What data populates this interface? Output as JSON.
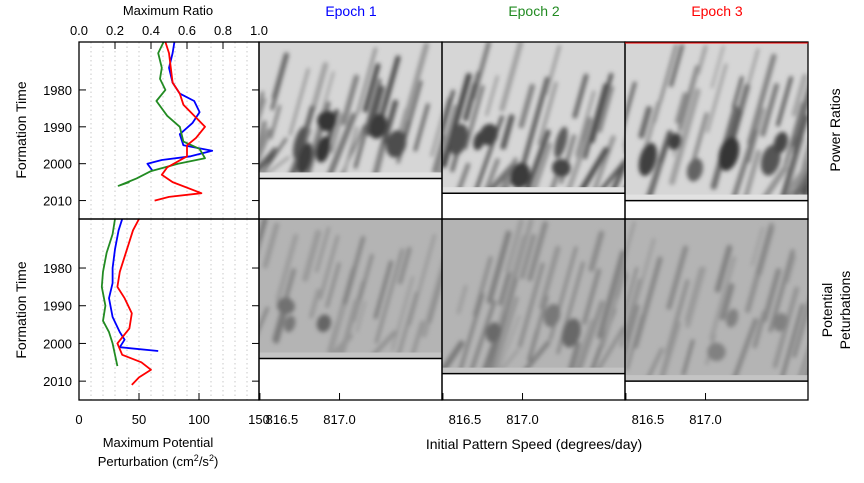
{
  "figure": {
    "top_axis_title": "Maximum Ratio",
    "bottom_left_title_line1": "Maximum Potential",
    "bottom_left_title_line2": "Perturbation (cm",
    "bottom_left_title_sup": "2",
    "bottom_left_title_mid": "/s",
    "bottom_left_title_sup2": "2",
    "bottom_left_title_end": ")",
    "left_ylabel": "Formation Time",
    "bottom_xlabel": "Initial Pattern Speed (degrees/day)",
    "row_label_top": "Power Ratios",
    "row_label_bottom_line1": "Potential",
    "row_label_bottom_line2": "Peturbations",
    "epochs": [
      {
        "label": "Epoch 1",
        "color": "#0000ff"
      },
      {
        "label": "Epoch 2",
        "color": "#228b22"
      },
      {
        "label": "Epoch 3",
        "color": "#ff0000"
      }
    ],
    "colors": {
      "epoch1": "#0000ff",
      "epoch2": "#228b22",
      "epoch3": "#ff0000"
    }
  },
  "chart_data": [
    {
      "type": "line",
      "panel": "top-left",
      "xlabel": "Maximum Ratio",
      "ylabel": "Formation Time",
      "xlim": [
        0.0,
        1.0
      ],
      "ylim": [
        1967,
        2015
      ],
      "x_ticks": [
        "0.0",
        "0.2",
        "0.4",
        "0.6",
        "0.8",
        "1.0"
      ],
      "y_ticks": [
        "1980",
        "1990",
        "2000",
        "2010"
      ],
      "grid": "vertical dotted",
      "series": [
        {
          "name": "Epoch 1",
          "color": "#0000ff",
          "points": [
            [
              0.53,
              1967
            ],
            [
              0.52,
              1970
            ],
            [
              0.5,
              1974
            ],
            [
              0.52,
              1978
            ],
            [
              0.56,
              1981
            ],
            [
              0.64,
              1983
            ],
            [
              0.67,
              1986
            ],
            [
              0.63,
              1989
            ],
            [
              0.56,
              1992
            ],
            [
              0.58,
              1995
            ],
            [
              0.74,
              1996.5
            ],
            [
              0.62,
              1998
            ],
            [
              0.46,
              1999
            ],
            [
              0.38,
              2000
            ],
            [
              0.41,
              2002
            ]
          ]
        },
        {
          "name": "Epoch 2",
          "color": "#228b22",
          "points": [
            [
              0.47,
              1967
            ],
            [
              0.44,
              1970
            ],
            [
              0.46,
              1974
            ],
            [
              0.45,
              1977
            ],
            [
              0.48,
              1980
            ],
            [
              0.43,
              1983
            ],
            [
              0.49,
              1987
            ],
            [
              0.56,
              1990
            ],
            [
              0.58,
              1994
            ],
            [
              0.67,
              1996
            ],
            [
              0.7,
              1998.5
            ],
            [
              0.55,
              2000
            ],
            [
              0.4,
              2002
            ],
            [
              0.32,
              2004
            ],
            [
              0.22,
              2006
            ],
            [
              0.28,
              2005
            ]
          ]
        },
        {
          "name": "Epoch 3",
          "color": "#ff0000",
          "points": [
            [
              0.48,
              1967
            ],
            [
              0.5,
              1970
            ],
            [
              0.51,
              1974
            ],
            [
              0.52,
              1978
            ],
            [
              0.56,
              1981
            ],
            [
              0.58,
              1984
            ],
            [
              0.64,
              1987
            ],
            [
              0.7,
              1990
            ],
            [
              0.65,
              1993
            ],
            [
              0.6,
              1995
            ],
            [
              0.6,
              1998
            ],
            [
              0.49,
              2001
            ],
            [
              0.46,
              2003
            ],
            [
              0.52,
              2005
            ],
            [
              0.68,
              2008
            ],
            [
              0.5,
              2009
            ],
            [
              0.42,
              2010
            ]
          ]
        }
      ]
    },
    {
      "type": "line",
      "panel": "bottom-left",
      "xlabel": "Maximum Potential Perturbation (cm^2/s^2)",
      "ylabel": "Formation Time",
      "xlim": [
        0,
        150
      ],
      "ylim": [
        1967,
        2015
      ],
      "x_ticks": [
        "0",
        "50",
        "100",
        "150"
      ],
      "y_ticks": [
        "1980",
        "1990",
        "2000",
        "2010"
      ],
      "grid": "vertical dotted",
      "series": [
        {
          "name": "Epoch 1",
          "color": "#0000ff",
          "points": [
            [
              36,
              1967
            ],
            [
              33,
              1970
            ],
            [
              30,
              1975
            ],
            [
              28,
              1980
            ],
            [
              28,
              1984
            ],
            [
              25,
              1988
            ],
            [
              28,
              1993
            ],
            [
              34,
              1997
            ],
            [
              38,
              1999
            ],
            [
              34,
              2001
            ],
            [
              66,
              2002
            ]
          ]
        },
        {
          "name": "Epoch 2",
          "color": "#228b22",
          "points": [
            [
              30,
              1967
            ],
            [
              28,
              1971
            ],
            [
              23,
              1976
            ],
            [
              20,
              1981
            ],
            [
              19,
              1985
            ],
            [
              22,
              1990
            ],
            [
              20,
              1994
            ],
            [
              25,
              1997
            ],
            [
              28,
              2000
            ],
            [
              30,
              2003
            ],
            [
              32,
              2006
            ]
          ]
        },
        {
          "name": "Epoch 3",
          "color": "#ff0000",
          "points": [
            [
              50,
              1967
            ],
            [
              45,
              1970
            ],
            [
              40,
              1975
            ],
            [
              34,
              1981
            ],
            [
              32,
              1985
            ],
            [
              38,
              1988
            ],
            [
              44,
              1992
            ],
            [
              42,
              1996
            ],
            [
              32,
              2000
            ],
            [
              36,
              2003
            ],
            [
              52,
              2005
            ],
            [
              60,
              2007
            ],
            [
              50,
              2009
            ],
            [
              44,
              2011
            ]
          ]
        }
      ]
    },
    {
      "type": "heatmap",
      "panels": [
        "Power Ratios",
        "Potential Peturbations"
      ],
      "columns": [
        "Epoch 1",
        "Epoch 2",
        "Epoch 3"
      ],
      "xlabel": "Initial Pattern Speed (degrees/day)",
      "x_ticks": [
        "816.5",
        "817.0"
      ],
      "colormap": "grayscale",
      "empty_below_year": {
        "Epoch 1": 2004,
        "Epoch 2": 2008,
        "Epoch 3": 2010
      }
    }
  ]
}
